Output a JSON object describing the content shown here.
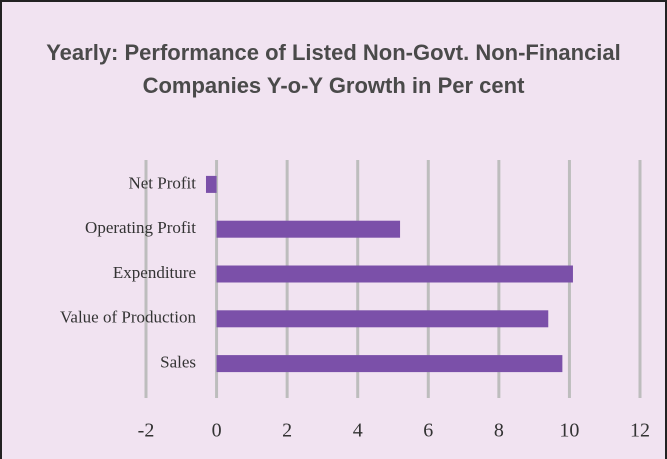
{
  "chart_data": {
    "type": "bar",
    "orientation": "horizontal",
    "title": "Yearly: Performance of Listed Non-Govt. Non-Financial Companies Y-o-Y Growth in Per cent",
    "categories": [
      "Net Profit",
      "Operating Profit",
      "Expenditure",
      "Value of Production",
      "Sales"
    ],
    "values": [
      -0.3,
      5.2,
      10.1,
      9.4,
      9.8
    ],
    "color": "#7b50a9",
    "xlim": [
      -2,
      12
    ],
    "xticks": [
      -2,
      0,
      2,
      4,
      6,
      8,
      10,
      12
    ],
    "grid": true
  }
}
